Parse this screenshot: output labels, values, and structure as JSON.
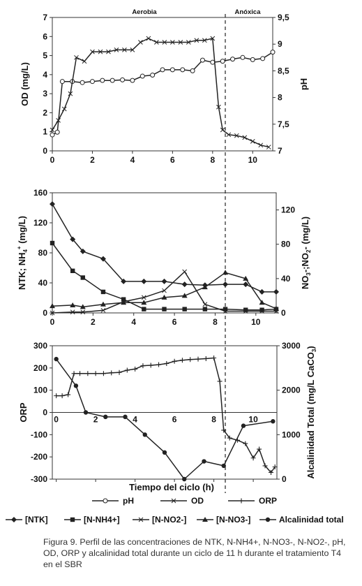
{
  "chart_data": [
    {
      "id": "top",
      "type": "line",
      "xlim": [
        0,
        11
      ],
      "x_ticks": [
        0,
        2,
        4,
        6,
        8,
        10
      ],
      "y_left": {
        "label": "OD (mg/L)",
        "lim": [
          0,
          7
        ],
        "ticks": [
          0,
          1,
          2,
          3,
          4,
          5,
          6,
          7
        ]
      },
      "y_right": {
        "label": "pH",
        "lim": [
          7,
          9.5
        ],
        "ticks": [
          "7",
          "7,5",
          "8",
          "8,5",
          "9",
          "9,5"
        ],
        "tick_values": [
          7,
          7.5,
          8,
          8.5,
          9,
          9.5
        ]
      },
      "regions": [
        "Aerobia",
        "Anóxica"
      ],
      "phase_boundary_x": 8.7,
      "series": [
        {
          "name": "pH",
          "axis": "right",
          "marker": "circle",
          "x": [
            0,
            0.25,
            0.5,
            1,
            1.5,
            2,
            2.5,
            3,
            3.5,
            4,
            4.5,
            5,
            5.5,
            6,
            6.5,
            7,
            7.5,
            8,
            8.5,
            9,
            9.5,
            10,
            10.5,
            11
          ],
          "y": [
            7.3,
            7.35,
            8.3,
            8.3,
            8.28,
            8.3,
            8.32,
            8.32,
            8.33,
            8.32,
            8.4,
            8.42,
            8.52,
            8.52,
            8.52,
            8.5,
            8.7,
            8.66,
            8.68,
            8.72,
            8.75,
            8.71,
            8.73,
            8.85
          ]
        },
        {
          "name": "OD",
          "axis": "left",
          "marker": "x",
          "x": [
            0,
            0.3,
            0.6,
            0.9,
            1.2,
            1.6,
            2,
            2.4,
            2.8,
            3.2,
            3.6,
            4,
            4.4,
            4.8,
            5.2,
            5.6,
            6,
            6.4,
            6.8,
            7.2,
            7.6,
            8,
            8.3,
            8.5,
            8.8,
            9.2,
            9.6,
            10,
            10.4,
            10.8
          ],
          "y": [
            1.1,
            1.6,
            2.2,
            3,
            4.9,
            4.7,
            5.2,
            5.2,
            5.2,
            5.3,
            5.3,
            5.3,
            5.7,
            5.9,
            5.7,
            5.7,
            5.7,
            5.7,
            5.7,
            5.8,
            5.8,
            5.9,
            2.3,
            1.1,
            0.85,
            0.8,
            0.7,
            0.5,
            0.3,
            0.2
          ]
        }
      ]
    },
    {
      "id": "middle",
      "type": "line",
      "xlim": [
        0,
        11
      ],
      "x_ticks": [
        0,
        2,
        4,
        6,
        8,
        10
      ],
      "y_left": {
        "label": "NTK; NH4+ (mg/L)",
        "lim": [
          0,
          160
        ],
        "ticks": [
          0,
          40,
          80,
          120,
          160
        ]
      },
      "y_right": {
        "label": "NO3-;NO2- (mg/L)",
        "lim": [
          0,
          140
        ],
        "ticks": [
          0,
          40,
          80,
          120
        ]
      },
      "phase_boundary_x": 8.7,
      "series": [
        {
          "name": "[NTK]",
          "axis": "left",
          "marker": "diamond",
          "x": [
            0,
            1,
            1.5,
            2.5,
            3.5,
            4.5,
            5.5,
            6.5,
            7.5,
            8.5,
            9.5,
            10.3,
            11
          ],
          "y": [
            145,
            98,
            82,
            72,
            42,
            42,
            42,
            38,
            37,
            38,
            38,
            28,
            28
          ]
        },
        {
          "name": "[N-NH4+]",
          "axis": "left",
          "marker": "square",
          "x": [
            0,
            1,
            1.5,
            2.5,
            3.5,
            4.5,
            5.5,
            6.5,
            7.5,
            8.5,
            9.5,
            10.3,
            11
          ],
          "y": [
            93,
            56,
            47,
            28,
            18,
            5,
            5,
            5,
            5,
            5,
            4,
            4,
            5
          ]
        },
        {
          "name": "[N-NO2-]",
          "axis": "right",
          "marker": "x",
          "x": [
            0,
            1,
            1.5,
            2.5,
            3.5,
            4.5,
            5.5,
            6.5,
            7.5,
            8.5,
            9.5,
            10.3,
            11
          ],
          "y": [
            0,
            1,
            1,
            3,
            13,
            18,
            26,
            48,
            10,
            2,
            2,
            2,
            2
          ]
        },
        {
          "name": "[N-NO3-]",
          "axis": "right",
          "marker": "triangle",
          "x": [
            0,
            1,
            1.5,
            2.5,
            3.5,
            4.5,
            5.5,
            6.5,
            7.5,
            8.5,
            9.5,
            10.3,
            11
          ],
          "y": [
            8,
            9,
            7,
            10,
            12,
            12,
            18,
            20,
            30,
            47,
            40,
            12,
            5
          ]
        }
      ]
    },
    {
      "id": "bottom",
      "type": "line",
      "xlim": [
        -0.2,
        11.2
      ],
      "x_ticks": [
        0,
        2,
        4,
        6,
        8,
        10
      ],
      "x_label": "Tiempo del ciclo (h)",
      "y_left": {
        "label": "ORP",
        "lim": [
          -300,
          300
        ],
        "ticks": [
          -300,
          -200,
          -100,
          0,
          100,
          200,
          300
        ]
      },
      "y_right": {
        "label": "Alcalinidad Total (mg/L CaCO3)",
        "lim": [
          0,
          3000
        ],
        "ticks": [
          0,
          1000,
          2000,
          3000
        ]
      },
      "phase_boundary_x": 8.7,
      "series": [
        {
          "name": "ORP",
          "axis": "left",
          "marker": "plus",
          "x": [
            0,
            0.3,
            0.6,
            0.9,
            1.2,
            1.6,
            2,
            2.4,
            2.8,
            3.2,
            3.6,
            4,
            4.4,
            4.8,
            5.2,
            5.6,
            6,
            6.4,
            6.8,
            7.2,
            7.6,
            8,
            8.3,
            8.5,
            8.8,
            9.2,
            9.6,
            10,
            10.3,
            10.6,
            10.9,
            11.1
          ],
          "y": [
            75,
            75,
            80,
            175,
            175,
            175,
            175,
            175,
            178,
            180,
            190,
            195,
            210,
            212,
            215,
            220,
            230,
            235,
            238,
            240,
            242,
            245,
            140,
            -80,
            -115,
            -125,
            -140,
            -205,
            -165,
            -240,
            -270,
            -245
          ]
        },
        {
          "name": "Alcalinidad total",
          "axis": "right",
          "marker": "circle-filled",
          "x": [
            0,
            1,
            1.5,
            2.5,
            3.5,
            4.5,
            5.5,
            6.5,
            7.5,
            8.5,
            9.5,
            11
          ],
          "y": [
            2700,
            2100,
            1500,
            1400,
            1400,
            1000,
            600,
            0,
            400,
            300,
            1200,
            1300
          ]
        }
      ]
    }
  ],
  "legend_row1": [
    "pH",
    "OD",
    "ORP"
  ],
  "legend_row2": [
    "[NTK]",
    "[N-NH4+]",
    "[N-NO2-]",
    "[N-NO3-]",
    "Alcalinidad total"
  ],
  "caption": "Figura 9. Perfil de las concentraciones de NTK, N-NH4+, N-NO3-, N-NO2-, pH, OD, ORP y alcalinidad total durante un ciclo de 11 h durante el tratamiento T4 en el SBR"
}
